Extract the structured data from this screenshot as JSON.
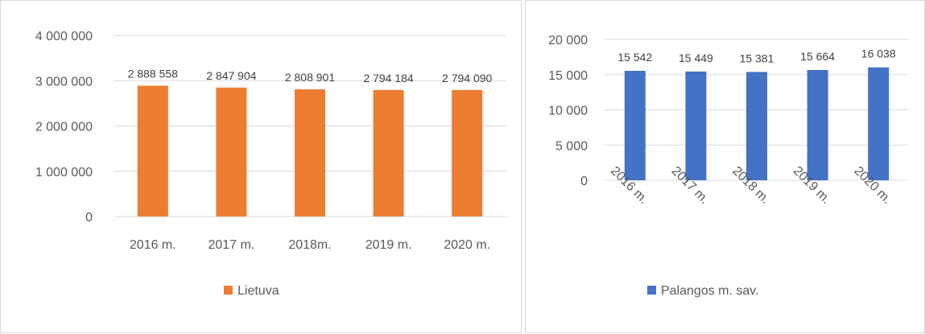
{
  "chart_data": [
    {
      "type": "bar",
      "categories": [
        "2016 m.",
        "2017 m.",
        "2018m.",
        "2019 m.",
        "2020 m."
      ],
      "series": [
        {
          "name": "Lietuva",
          "values": [
            2888558,
            2847904,
            2808901,
            2794184,
            2794090
          ],
          "color": "#ED7D31"
        }
      ],
      "data_labels": [
        "2 888 558",
        "2 847 904",
        "2 808 901",
        "2 794 184",
        "2 794 090"
      ],
      "yticks": [
        "0",
        "1 000 000",
        "2 000 000",
        "3 000 000",
        "4 000 000"
      ],
      "ylim": [
        0,
        4000000
      ],
      "grid": true,
      "legend": "bottom"
    },
    {
      "type": "bar",
      "categories": [
        "2016 m.",
        "2017 m.",
        "2018 m.",
        "2019 m.",
        "2020 m."
      ],
      "series": [
        {
          "name": "Palangos m. sav.",
          "values": [
            15542,
            15449,
            15381,
            15664,
            16038
          ],
          "color": "#4472C4"
        }
      ],
      "data_labels": [
        "15 542",
        "15 449",
        "15 381",
        "15 664",
        "16 038"
      ],
      "yticks": [
        "0",
        "5 000",
        "10 000",
        "15 000",
        "20 000"
      ],
      "ylim": [
        0,
        20000
      ],
      "grid": true,
      "legend": "bottom",
      "x_tick_rotation": "diagonal"
    }
  ]
}
